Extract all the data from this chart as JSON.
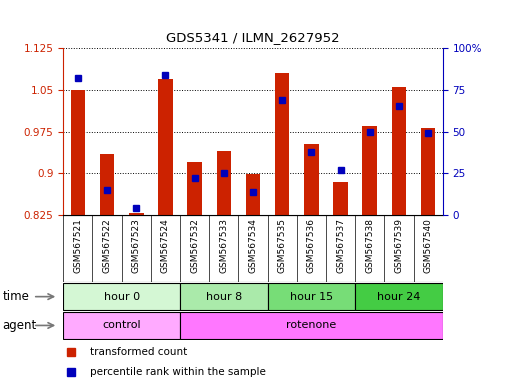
{
  "title": "GDS5341 / ILMN_2627952",
  "samples": [
    "GSM567521",
    "GSM567522",
    "GSM567523",
    "GSM567524",
    "GSM567532",
    "GSM567533",
    "GSM567534",
    "GSM567535",
    "GSM567536",
    "GSM567537",
    "GSM567538",
    "GSM567539",
    "GSM567540"
  ],
  "red_values": [
    1.05,
    0.935,
    0.828,
    1.07,
    0.92,
    0.94,
    0.898,
    1.08,
    0.952,
    0.885,
    0.985,
    1.055,
    0.982
  ],
  "blue_values": [
    82,
    15,
    4,
    84,
    22,
    25,
    14,
    69,
    38,
    27,
    50,
    65,
    49
  ],
  "ymin": 0.825,
  "ymax": 1.125,
  "yticks_red": [
    0.825,
    0.9,
    0.975,
    1.05,
    1.125
  ],
  "ytick_labels_red": [
    "0.825",
    "0.9",
    "0.975",
    "1.05",
    "1.125"
  ],
  "yticks_blue": [
    0,
    25,
    50,
    75,
    100
  ],
  "ytick_labels_blue": [
    "0",
    "25",
    "50",
    "75",
    "100%"
  ],
  "groups": [
    {
      "label": "hour 0",
      "start": 0,
      "end": 4,
      "color": "#d4f7d4"
    },
    {
      "label": "hour 8",
      "start": 4,
      "end": 7,
      "color": "#aaeaaa"
    },
    {
      "label": "hour 15",
      "start": 7,
      "end": 10,
      "color": "#77dd77"
    },
    {
      "label": "hour 24",
      "start": 10,
      "end": 13,
      "color": "#44cc44"
    }
  ],
  "agents": [
    {
      "label": "control",
      "start": 0,
      "end": 4,
      "color": "#ffaaff"
    },
    {
      "label": "rotenone",
      "start": 4,
      "end": 13,
      "color": "#ff77ff"
    }
  ],
  "bar_color": "#cc2200",
  "dot_color": "#0000bb",
  "bg_color": "#ffffff",
  "xtick_bg": "#dddddd",
  "left_axis_color": "#cc2200",
  "right_axis_color": "#0000bb",
  "legend_red": "transformed count",
  "legend_blue": "percentile rank within the sample"
}
